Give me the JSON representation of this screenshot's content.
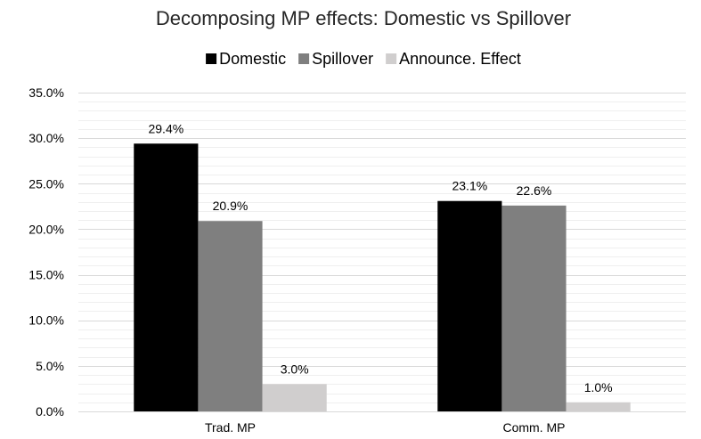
{
  "chart_data": {
    "type": "bar",
    "title": "Decomposing MP effects: Domestic vs Spillover",
    "categories": [
      "Trad. MP",
      "Comm. MP"
    ],
    "series": [
      {
        "name": "Domestic",
        "values": [
          29.4,
          23.1
        ],
        "color": "#000000"
      },
      {
        "name": "Spillover",
        "values": [
          20.9,
          22.6
        ],
        "color": "#7f7f7f"
      },
      {
        "name": "Announce. Effect",
        "values": [
          3.0,
          1.0
        ],
        "color": "#d0cece"
      }
    ],
    "value_labels": [
      [
        "29.4%",
        "23.1%"
      ],
      [
        "20.9%",
        "22.6%"
      ],
      [
        "3.0%",
        "1.0%"
      ]
    ],
    "ylim": [
      0,
      35
    ],
    "y_ticks": [
      0,
      5,
      10,
      15,
      20,
      25,
      30,
      35
    ],
    "y_tick_labels": [
      "0.0%",
      "5.0%",
      "10.0%",
      "15.0%",
      "20.0%",
      "25.0%",
      "30.0%",
      "35.0%"
    ],
    "xlabel": "",
    "ylabel": "",
    "grid": true,
    "legend_position": "top"
  }
}
